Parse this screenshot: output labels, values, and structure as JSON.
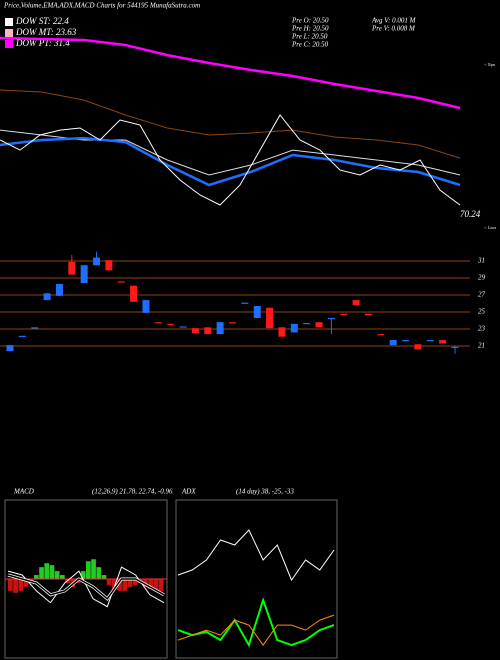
{
  "header": {
    "title": "Price,Volume,EMA,ADX,MACD Charts for 544195 MunafaSutra.com"
  },
  "legend": [
    {
      "label": "DOW ST: 22.4",
      "color": "#ffffff"
    },
    {
      "label": "DOW MT: 23.63",
      "color": "#ffb6c1"
    },
    {
      "label": "DOW PT: 31.4",
      "color": "#ff00ff"
    }
  ],
  "stats": [
    "Pre  O: 20.50",
    "Pre  H: 20.50",
    "Pre  L: 20.50",
    "Pre  C: 20.50",
    "Avg  V: 0.001  M",
    "Pre  V: 0.008  M"
  ],
  "chart_data": [
    {
      "type": "line",
      "ylim": [
        19.5,
        40
      ],
      "annotations": [
        "70.24",
        "< Tops",
        "< Lows"
      ],
      "series": [
        {
          "color": "#ff00ff",
          "width": 2.5,
          "values": [
            38.96,
            38.85,
            38.74,
            38.2,
            37.12,
            36.27,
            35.52,
            34.87,
            34.01,
            33.26,
            32.51,
            31.43
          ]
        },
        {
          "color": "#8b4513",
          "width": 1,
          "values": [
            33.37,
            33.15,
            32.29,
            30.68,
            29.28,
            28.53,
            28.74,
            29.06,
            28.31,
            27.99,
            27.45,
            26.05
          ]
        },
        {
          "color": "#dddddd",
          "width": 1,
          "values": [
            29.06,
            28.53,
            27.99,
            27.99,
            25.84,
            24.23,
            25.3,
            26.91,
            26.38,
            25.84,
            25.3,
            24.23
          ]
        },
        {
          "color": "#1e6fff",
          "width": 2.5,
          "values": [
            27.45,
            27.99,
            28.2,
            27.77,
            25.3,
            23.15,
            24.55,
            26.38,
            25.84,
            24.98,
            24.55,
            23.15
          ]
        },
        {
          "color": "#ffffff",
          "width": 1,
          "values": [
            27.99,
            26.91,
            28.53,
            29.06,
            29.28,
            27.99,
            30.14,
            29.6,
            25.84,
            23.69,
            22.08,
            21.0,
            23.15,
            26.91,
            30.68,
            27.99,
            26.91,
            24.76,
            24.23,
            25.3,
            24.76,
            25.84,
            22.61,
            21.0
          ]
        }
      ]
    },
    {
      "type": "candlestick",
      "ylim": [
        20,
        32
      ],
      "yticks": [
        31,
        29,
        27,
        25,
        23,
        21
      ],
      "up_color": "#1e6fff",
      "down_color": "#ff1a1a",
      "grid_color": "#8b4513",
      "candles": [
        [
          20.4,
          21.1,
          20.4,
          21.1
        ],
        [
          22.1,
          22.2,
          22.1,
          22.2
        ],
        [
          23.1,
          23.2,
          23.1,
          23.2
        ],
        [
          26.4,
          27.2,
          26.4,
          27.2
        ],
        [
          26.9,
          28.3,
          26.9,
          28.3
        ],
        [
          30.9,
          31.7,
          29.4,
          29.4
        ],
        [
          28.4,
          30.5,
          28.4,
          30.5
        ],
        [
          30.5,
          32.1,
          30.5,
          31.4
        ],
        [
          31.1,
          31.1,
          29.9,
          29.9
        ],
        [
          28.6,
          28.6,
          28.5,
          28.5
        ],
        [
          28.1,
          28.1,
          26.2,
          26.2
        ],
        [
          24.9,
          26.4,
          24.9,
          26.4
        ],
        [
          23.8,
          23.8,
          23.7,
          23.7
        ],
        [
          23.6,
          23.6,
          23.5,
          23.5
        ],
        [
          23.2,
          23.3,
          23.2,
          23.3
        ],
        [
          23.1,
          23.1,
          22.5,
          22.5
        ],
        [
          23.2,
          23.2,
          22.4,
          22.4
        ],
        [
          22.4,
          23.8,
          22.4,
          23.8
        ],
        [
          23.8,
          23.8,
          23.7,
          23.7
        ],
        [
          26.0,
          26.1,
          26.0,
          26.1
        ],
        [
          24.3,
          25.7,
          24.3,
          25.7
        ],
        [
          25.5,
          25.5,
          23.1,
          23.1
        ],
        [
          23.2,
          23.2,
          22.1,
          22.1
        ],
        [
          22.6,
          23.6,
          22.6,
          23.6
        ],
        [
          23.6,
          23.7,
          23.6,
          23.7
        ],
        [
          23.8,
          23.8,
          23.2,
          23.2
        ],
        [
          24.2,
          24.3,
          22.4,
          24.3
        ],
        [
          24.8,
          24.8,
          24.7,
          24.7
        ],
        [
          26.4,
          26.4,
          25.8,
          25.8
        ],
        [
          24.8,
          24.8,
          24.6,
          24.6
        ],
        [
          22.4,
          22.4,
          22.3,
          22.3
        ],
        [
          21.1,
          21.7,
          21.1,
          21.7
        ],
        [
          21.6,
          21.7,
          21.6,
          21.7
        ],
        [
          21.2,
          21.2,
          20.6,
          20.6
        ],
        [
          21.6,
          21.7,
          21.6,
          21.7
        ],
        [
          21.7,
          21.7,
          21.3,
          21.3
        ],
        [
          20.8,
          21.0,
          20.1,
          20.9
        ]
      ]
    },
    {
      "type": "macd",
      "title": "MACD",
      "subtitle": "(12,26,9) 21.78, 22.74, -0.96",
      "ylim": [
        -2,
        2
      ],
      "zero_color": "#ff2a2a",
      "histogram": [
        -0.3,
        -0.35,
        -0.3,
        -0.2,
        -0.1,
        0.1,
        0.3,
        0.4,
        0.35,
        0.2,
        0.1,
        -0.1,
        -0.2,
        -0.1,
        0.2,
        0.45,
        0.5,
        0.3,
        0.1,
        -0.15,
        -0.25,
        -0.3,
        -0.3,
        -0.2,
        -0.15,
        -0.1,
        -0.2,
        -0.25,
        -0.3,
        -0.3
      ],
      "series": [
        {
          "color": "#ffffff",
          "values": [
            0.2,
            0.1,
            -0.3,
            -0.6,
            -0.1,
            0.2,
            -0.5,
            -0.7,
            0.3,
            0.1,
            -0.4,
            -0.6
          ]
        },
        {
          "color": "#000000",
          "values": [
            0.1,
            0.0,
            -0.1,
            -0.4,
            -0.3,
            0.0,
            -0.2,
            -0.5,
            0.0,
            0.0,
            -0.2,
            -0.4
          ]
        }
      ]
    },
    {
      "type": "adx",
      "title": "ADX",
      "subtitle": "(14 day) 38, -25, -33",
      "ylim": [
        0,
        60
      ],
      "series": [
        {
          "color": "#ffffff",
          "values": [
            31.5,
            33.4,
            37.2,
            44.8,
            42.9,
            48.6,
            37.2,
            42.9,
            29.6,
            37.2,
            33.4,
            41.0
          ]
        },
        {
          "color": "#00ff00",
          "values": [
            10.6,
            8.7,
            9.9,
            6.8,
            14.4,
            4.9,
            22.0,
            6.8,
            4.9,
            6.8,
            10.6,
            12.5
          ]
        },
        {
          "color": "#ff8c00",
          "values": [
            6.8,
            8.7,
            10.6,
            8.7,
            14.4,
            12.5,
            4.9,
            12.5,
            12.5,
            10.6,
            14.4,
            16.3
          ]
        }
      ]
    }
  ]
}
